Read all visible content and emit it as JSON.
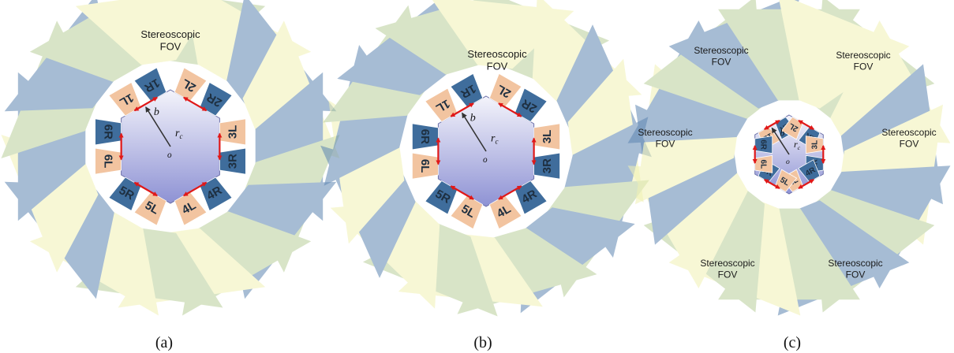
{
  "colors": {
    "fov_green": "#b9cf9a",
    "fov_yellow": "#f1f2b4",
    "fov_blue": "#5e86b2",
    "cam_left": "#f2c4a0",
    "cam_right": "#3f6d9c",
    "arrow": "#e01818",
    "hex_top": "#f4f4fb",
    "hex_bottom": "#8e92d4"
  },
  "panels": [
    {
      "caption": "(a)",
      "fov_labels": [
        [
          "Stereoscopic",
          "FOV"
        ]
      ],
      "cameras": [
        "1L",
        "1R",
        "2L",
        "2R",
        "3L",
        "3R",
        "4L",
        "4R",
        "5L",
        "5R",
        "6L",
        "6R"
      ],
      "symbols": {
        "baseline": "b",
        "radius": "r",
        "radius_sub": "c",
        "origin": "o"
      }
    },
    {
      "caption": "(b)",
      "fov_labels": [
        [
          "Stereoscopic",
          "FOV"
        ]
      ],
      "cameras": [
        "1L",
        "1R",
        "2L",
        "2R",
        "3L",
        "3R",
        "4L",
        "4R",
        "5L",
        "5R",
        "6L",
        "6R"
      ],
      "symbols": {
        "baseline": "b",
        "radius": "r",
        "radius_sub": "c",
        "origin": "o"
      }
    },
    {
      "caption": "(c)",
      "fov_labels": [
        [
          "Stereoscopic",
          "FOV"
        ],
        [
          "Stereoscopic",
          "FOV"
        ],
        [
          "Stereoscopic",
          "FOV"
        ],
        [
          "Stereoscopic",
          "FOV"
        ],
        [
          "Stereoscopic",
          "FOV"
        ],
        [
          "Stereoscopic",
          "FOV"
        ]
      ],
      "cameras": [
        "1L",
        "1R",
        "2L",
        "2R",
        "3L",
        "3R",
        "4L",
        "4R",
        "5L",
        "5R",
        "6L",
        "6R"
      ],
      "symbols": {
        "baseline": "b",
        "radius": "r",
        "radius_sub": "c",
        "origin": "o"
      }
    }
  ]
}
